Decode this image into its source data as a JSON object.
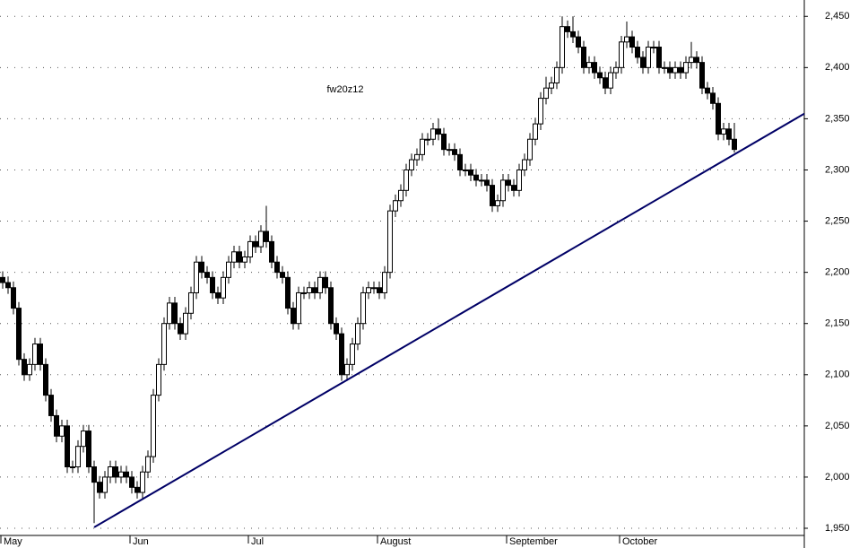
{
  "chart_data": {
    "type": "candlestick",
    "annotation": "fw20z12",
    "categories": [
      "May",
      null,
      null,
      null,
      null,
      null,
      null,
      null,
      null,
      null,
      null,
      null,
      null,
      null,
      null,
      null,
      null,
      null,
      null,
      null,
      null,
      null,
      null,
      null,
      "Jun",
      null,
      null,
      null,
      null,
      null,
      null,
      null,
      null,
      null,
      null,
      null,
      null,
      null,
      null,
      null,
      null,
      null,
      null,
      null,
      null,
      null,
      "Jul",
      null,
      null,
      null,
      null,
      null,
      null,
      null,
      null,
      null,
      null,
      null,
      null,
      null,
      null,
      null,
      null,
      null,
      null,
      null,
      null,
      null,
      null,
      null,
      "August",
      null,
      null,
      null,
      null,
      null,
      null,
      null,
      null,
      null,
      null,
      null,
      null,
      null,
      null,
      null,
      null,
      null,
      null,
      null,
      null,
      null,
      null,
      null,
      "September",
      null,
      null,
      null,
      null,
      null,
      null,
      null,
      null,
      null,
      null,
      null,
      null,
      null,
      null,
      null,
      null,
      null,
      null,
      null,
      null,
      "October",
      null,
      null,
      null,
      null,
      null,
      null,
      null,
      null,
      null,
      null,
      null,
      null,
      null,
      null,
      null,
      null,
      null,
      null,
      null,
      null,
      null
    ],
    "open": [
      2195,
      2190,
      2185,
      2165,
      2115,
      2100,
      2110,
      2130,
      2110,
      2080,
      2060,
      2040,
      2050,
      2010,
      2010,
      2030,
      2045,
      2010,
      1995,
      1985,
      2000,
      2010,
      2000,
      2005,
      2000,
      1990,
      1985,
      2005,
      2020,
      2080,
      2110,
      2150,
      2170,
      2150,
      2140,
      2160,
      2180,
      2210,
      2200,
      2195,
      2180,
      2175,
      2195,
      2210,
      2220,
      2210,
      2215,
      2230,
      2225,
      2240,
      2230,
      2210,
      2200,
      2195,
      2165,
      2150,
      2180,
      2180,
      2185,
      2180,
      2195,
      2185,
      2150,
      2140,
      2100,
      2110,
      2130,
      2150,
      2180,
      2185,
      2185,
      2180,
      2200,
      2260,
      2270,
      2280,
      2300,
      2310,
      2315,
      2330,
      2330,
      2340,
      2335,
      2320,
      2320,
      2315,
      2300,
      2300,
      2295,
      2290,
      2290,
      2285,
      2265,
      2270,
      2290,
      2285,
      2280,
      2300,
      2310,
      2330,
      2345,
      2370,
      2380,
      2385,
      2400,
      2440,
      2435,
      2430,
      2420,
      2400,
      2405,
      2395,
      2390,
      2380,
      2395,
      2400,
      2425,
      2430,
      2420,
      2410,
      2400,
      2420,
      2420,
      2400,
      2400,
      2395,
      2400,
      2395,
      2405,
      2410,
      2405,
      2380,
      2375,
      2365,
      2335,
      2340,
      2330
    ],
    "high": [
      2201,
      2196,
      2191,
      2171,
      2121,
      2116,
      2136,
      2136,
      2116,
      2086,
      2066,
      2056,
      2056,
      2016,
      2036,
      2051,
      2051,
      2016,
      2001,
      2006,
      2016,
      2016,
      2011,
      2011,
      2006,
      1996,
      2011,
      2026,
      2086,
      2116,
      2156,
      2176,
      2176,
      2156,
      2166,
      2186,
      2216,
      2216,
      2206,
      2201,
      2186,
      2201,
      2216,
      2226,
      2226,
      2221,
      2236,
      2236,
      2246,
      2265,
      2236,
      2216,
      2206,
      2201,
      2171,
      2186,
      2186,
      2191,
      2191,
      2201,
      2201,
      2191,
      2156,
      2146,
      2116,
      2136,
      2156,
      2186,
      2191,
      2191,
      2191,
      2206,
      2266,
      2276,
      2286,
      2306,
      2316,
      2321,
      2336,
      2336,
      2346,
      2350,
      2341,
      2326,
      2326,
      2321,
      2306,
      2306,
      2301,
      2296,
      2296,
      2291,
      2276,
      2296,
      2296,
      2291,
      2306,
      2316,
      2336,
      2351,
      2376,
      2391,
      2391,
      2406,
      2450,
      2446,
      2450,
      2436,
      2426,
      2411,
      2411,
      2401,
      2396,
      2401,
      2406,
      2431,
      2445,
      2436,
      2426,
      2416,
      2426,
      2426,
      2426,
      2406,
      2406,
      2406,
      2406,
      2411,
      2425,
      2416,
      2411,
      2386,
      2381,
      2371,
      2346,
      2346,
      2346
    ],
    "low": [
      2184,
      2179,
      2159,
      2109,
      2094,
      2094,
      2104,
      2104,
      2074,
      2054,
      2034,
      2034,
      2004,
      2004,
      2004,
      2024,
      2004,
      1955,
      1979,
      1979,
      1994,
      1994,
      1994,
      1994,
      1984,
      1979,
      1979,
      1999,
      2014,
      2074,
      2104,
      2144,
      2144,
      2134,
      2134,
      2154,
      2174,
      2194,
      2189,
      2174,
      2169,
      2169,
      2189,
      2204,
      2204,
      2204,
      2209,
      2219,
      2219,
      2224,
      2204,
      2194,
      2189,
      2159,
      2144,
      2144,
      2174,
      2174,
      2174,
      2174,
      2179,
      2144,
      2134,
      2094,
      2094,
      2104,
      2124,
      2144,
      2174,
      2179,
      2174,
      2174,
      2194,
      2254,
      2264,
      2274,
      2294,
      2304,
      2309,
      2324,
      2324,
      2329,
      2314,
      2314,
      2309,
      2294,
      2294,
      2289,
      2284,
      2284,
      2279,
      2259,
      2259,
      2264,
      2279,
      2274,
      2274,
      2294,
      2304,
      2324,
      2339,
      2364,
      2374,
      2379,
      2394,
      2429,
      2424,
      2414,
      2394,
      2394,
      2389,
      2384,
      2374,
      2374,
      2389,
      2394,
      2419,
      2414,
      2404,
      2394,
      2394,
      2414,
      2394,
      2394,
      2389,
      2389,
      2389,
      2389,
      2399,
      2399,
      2374,
      2369,
      2359,
      2329,
      2329,
      2324,
      2317
    ],
    "close": [
      2190,
      2185,
      2165,
      2115,
      2100,
      2110,
      2130,
      2110,
      2080,
      2060,
      2040,
      2050,
      2010,
      2010,
      2030,
      2045,
      2010,
      1995,
      1985,
      2000,
      2010,
      2000,
      2005,
      2000,
      1990,
      1985,
      2005,
      2020,
      2080,
      2110,
      2150,
      2170,
      2150,
      2140,
      2160,
      2180,
      2210,
      2200,
      2195,
      2180,
      2175,
      2195,
      2210,
      2220,
      2210,
      2215,
      2230,
      2225,
      2240,
      2230,
      2210,
      2200,
      2195,
      2165,
      2150,
      2180,
      2180,
      2185,
      2180,
      2195,
      2185,
      2150,
      2140,
      2100,
      2110,
      2130,
      2150,
      2180,
      2185,
      2185,
      2180,
      2200,
      2260,
      2270,
      2280,
      2300,
      2310,
      2315,
      2330,
      2330,
      2340,
      2335,
      2320,
      2320,
      2315,
      2300,
      2300,
      2295,
      2290,
      2290,
      2285,
      2265,
      2270,
      2290,
      2285,
      2280,
      2300,
      2310,
      2330,
      2345,
      2370,
      2380,
      2385,
      2400,
      2440,
      2435,
      2430,
      2420,
      2400,
      2405,
      2395,
      2390,
      2380,
      2395,
      2400,
      2425,
      2430,
      2420,
      2410,
      2400,
      2420,
      2420,
      2400,
      2400,
      2395,
      2400,
      2395,
      2405,
      2410,
      2405,
      2380,
      2375,
      2365,
      2335,
      2340,
      2330,
      2320
    ],
    "trendline": {
      "start": [
        17,
        1951
      ],
      "end": [
        149,
        2355
      ],
      "color": "#000066"
    },
    "ylim": [
      1943,
      2466
    ],
    "yticks": [
      {
        "value": 1950,
        "label": "1,950"
      },
      {
        "value": 2000,
        "label": "2,000"
      },
      {
        "value": 2050,
        "label": "2,050"
      },
      {
        "value": 2100,
        "label": "2,100"
      },
      {
        "value": 2150,
        "label": "2,150"
      },
      {
        "value": 2200,
        "label": "2,200"
      },
      {
        "value": 2250,
        "label": "2,250"
      },
      {
        "value": 2300,
        "label": "2,300"
      },
      {
        "value": 2350,
        "label": "2,350"
      },
      {
        "value": 2400,
        "label": "2,400"
      },
      {
        "value": 2450,
        "label": "2,450"
      }
    ],
    "grid": true
  }
}
